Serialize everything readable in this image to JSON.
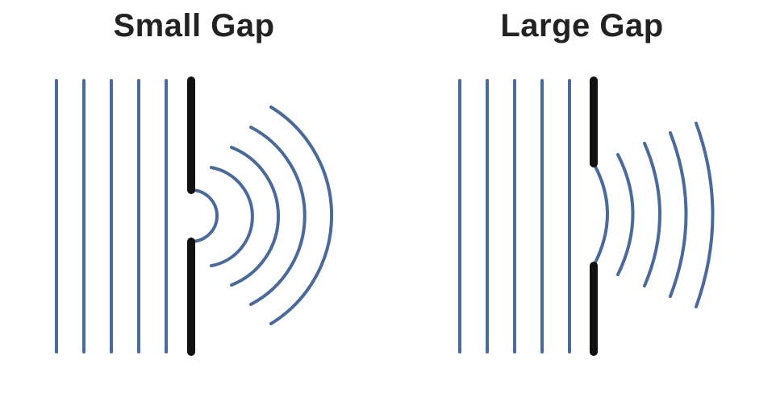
{
  "colors": {
    "wave": "#4a6a9a",
    "barrier": "#111111",
    "title": "#222222",
    "background": "#ffffff"
  },
  "panels": [
    {
      "id": "small-gap",
      "title": "Small Gap",
      "incident_wavefronts": 5,
      "diffracted_wavefronts": 5,
      "diffracted_shape": "semicircular arcs"
    },
    {
      "id": "large-gap",
      "title": "Large Gap",
      "incident_wavefronts": 5,
      "diffracted_wavefronts": 5,
      "diffracted_shape": "nearly straight with curved ends"
    }
  ]
}
